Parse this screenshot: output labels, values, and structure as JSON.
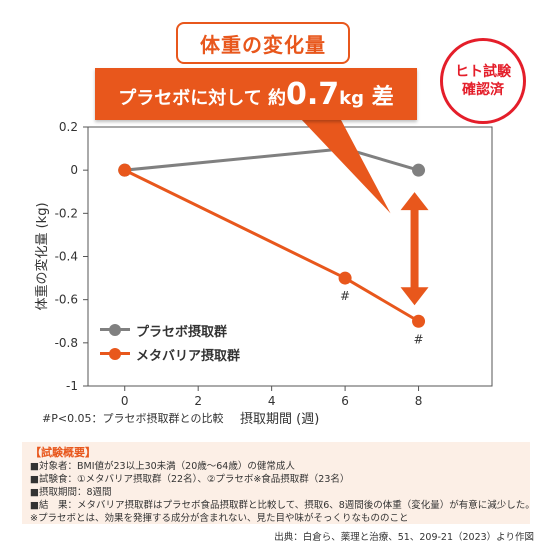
{
  "header": {
    "title": "体重の変化量",
    "callout": {
      "prefix": "プラセボに対して 約",
      "value": "0.7",
      "unit": "kg",
      "suffix": " 差"
    },
    "badge": [
      "ヒト試験",
      "確認済"
    ]
  },
  "colors": {
    "accent": "#e8571c",
    "placebo": "#808080",
    "badge_red": "#e41e2a",
    "arrow": "#e8571c",
    "summary_bg": "#fcefe6"
  },
  "chart_data": {
    "type": "line",
    "x": [
      0,
      6,
      8
    ],
    "series": [
      {
        "name": "プラセボ摂取群",
        "values": [
          0,
          0.1,
          0
        ],
        "color": "#808080"
      },
      {
        "name": "メタバリア摂取群",
        "values": [
          0,
          -0.5,
          -0.7
        ],
        "color": "#e8571c"
      }
    ],
    "xlabel": "摂取期間 (週)",
    "ylabel": "体重の変化量 (kg)",
    "xlim": [
      -1,
      10
    ],
    "ylim": [
      -1,
      0.2
    ],
    "xticks": [
      0,
      2,
      4,
      6,
      8
    ],
    "yticks": [
      0.2,
      0,
      -0.2,
      -0.4,
      -0.6,
      -0.8,
      -1
    ],
    "ytick_labels": [
      "0.2",
      "0",
      "-0.2",
      "-0.4",
      "-0.6",
      "-0.8",
      "-1"
    ],
    "annotations": [
      {
        "text": "#",
        "x": 6,
        "y": -0.5
      },
      {
        "text": "#",
        "x": 8,
        "y": -0.7
      }
    ],
    "difference_arrow": {
      "x": 8,
      "from": 0,
      "to": -0.7
    },
    "grid": false,
    "legend": "bottom-left"
  },
  "footnote": "#P<0.05：プラセボ摂取群との比較",
  "summary": {
    "title": "【試験概要】",
    "lines": [
      "■対象者：BMI値が23以上30未満（20歳〜64歳）の健常成人",
      "■試験食：①メタバリア摂取群（22名）、②プラセボ※食品摂取群（23名）",
      "■摂取期間：8週間",
      "■結　果：メタバリア摂取群はプラセボ食品摂取群と比較して、摂取6、8週間後の体重（変化量）が有意に減少した。",
      "※プラセボとは、効果を発揮する成分が含まれない、見た目や味がそっくりなもののこと"
    ]
  },
  "citation": "出典：白倉ら、薬理と治療、51、209-21（2023）より作図"
}
